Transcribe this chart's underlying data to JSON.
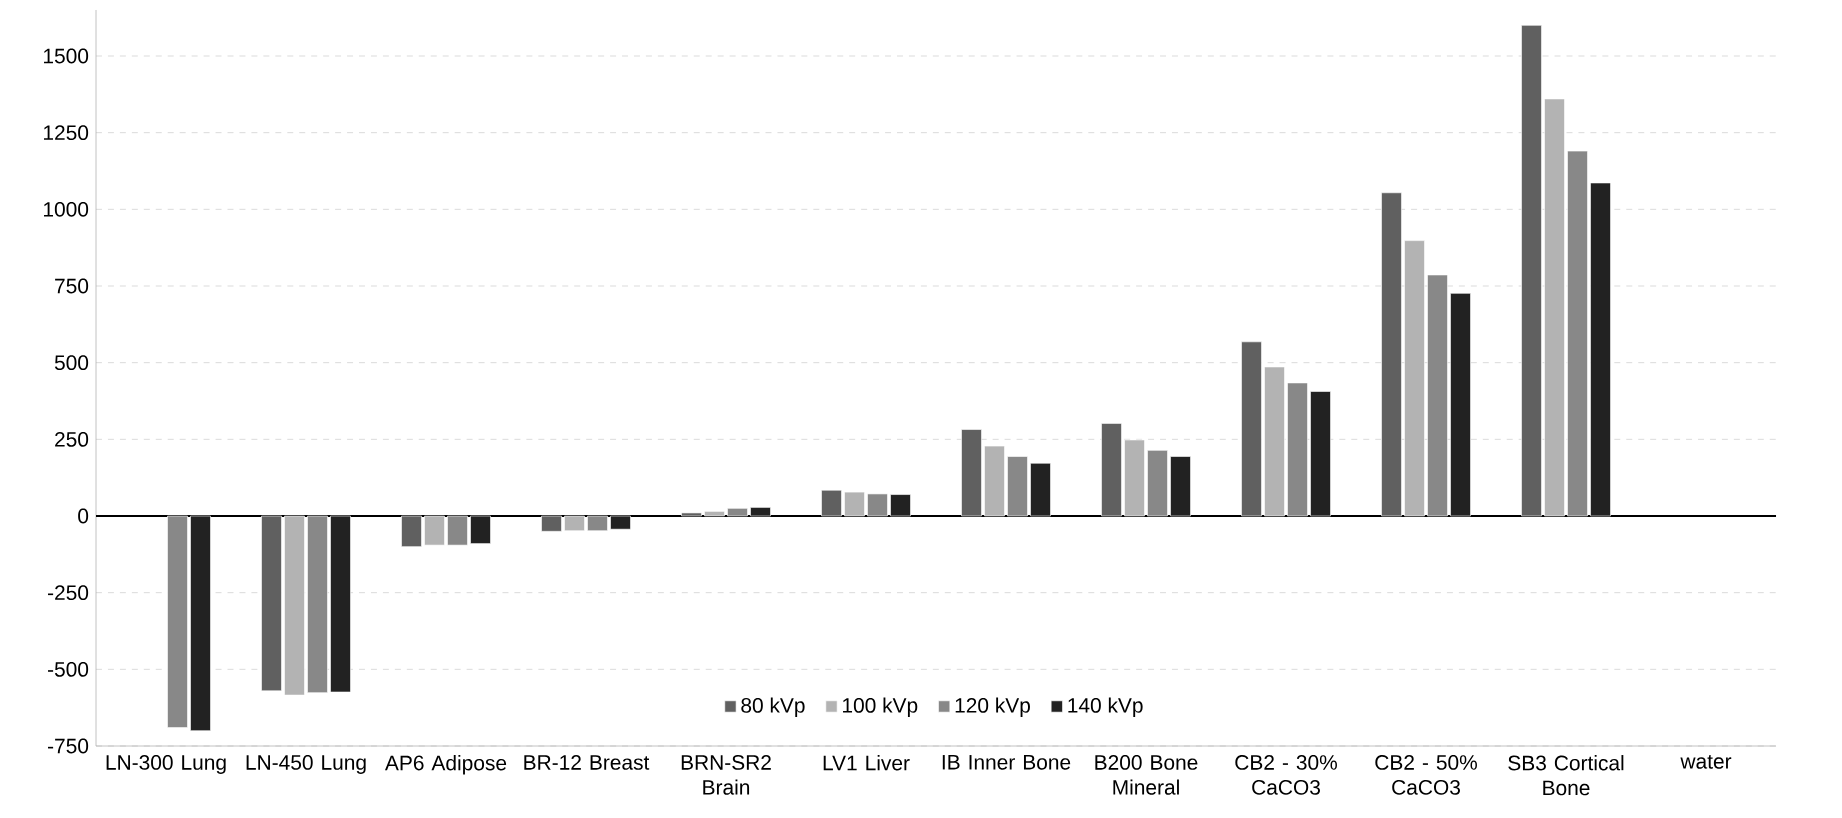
{
  "chart_data": {
    "type": "bar",
    "categories": [
      "LN-300 Lung",
      "LN-450 Lung",
      "AP6 Adipose",
      "BR-12 Breast",
      "BRN-SR2 Brain",
      "LV1 Liver",
      "IB Inner Bone",
      "B200 Bone Mineral",
      "CB2 - 30% CaCO3",
      "CB2 - 50% CaCO3",
      "SB3 Cortical Bone",
      "water"
    ],
    "series": [
      {
        "name": "80 kVp",
        "color": "#606060",
        "values": [
          null,
          -570,
          -100,
          -50,
          10,
          84,
          282,
          302,
          568,
          1054,
          1600,
          null
        ]
      },
      {
        "name": "100 kVp",
        "color": "#b3b3b3",
        "values": [
          null,
          -584,
          -95,
          -48,
          15,
          78,
          228,
          248,
          486,
          898,
          1360,
          null
        ]
      },
      {
        "name": "120 kVp",
        "color": "#888888",
        "values": [
          -690,
          -576,
          -95,
          -48,
          25,
          72,
          194,
          214,
          434,
          786,
          1190,
          null
        ]
      },
      {
        "name": "140 kVp",
        "color": "#222222",
        "values": [
          -700,
          -574,
          -90,
          -43,
          28,
          70,
          172,
          194,
          406,
          726,
          1086,
          null
        ]
      }
    ],
    "ylim": [
      -750,
      1650
    ],
    "yticks": [
      -750,
      -500,
      -250,
      0,
      250,
      500,
      750,
      1000,
      1250,
      1500
    ],
    "grid": "y",
    "legend": "bottom"
  }
}
